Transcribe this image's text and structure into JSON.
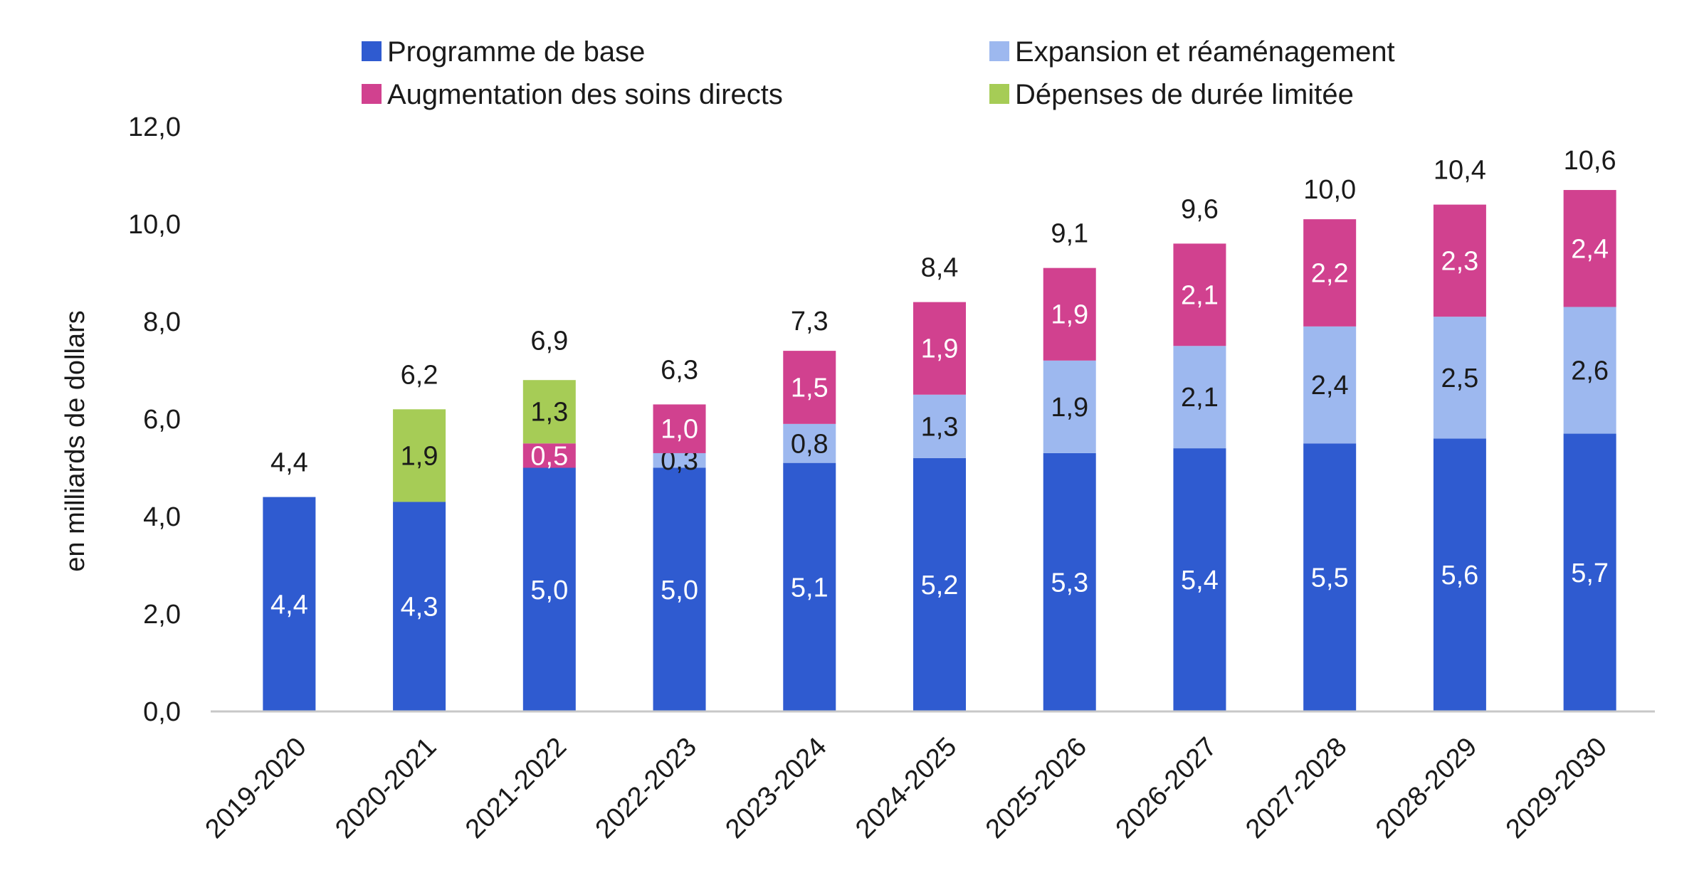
{
  "chart_data": {
    "type": "bar",
    "stacked": true,
    "categories": [
      "2019-2020",
      "2020-2021",
      "2021-2022",
      "2022-2023",
      "2023-2024",
      "2024-2025",
      "2025-2026",
      "2026-2027",
      "2027-2028",
      "2028-2029",
      "2029-2030"
    ],
    "series": [
      {
        "name": "Programme de base",
        "color": "#2f5bd0",
        "label_color": "#ffffff",
        "values": [
          4.4,
          4.3,
          5.0,
          5.0,
          5.1,
          5.2,
          5.3,
          5.4,
          5.5,
          5.6,
          5.7
        ],
        "labels": [
          "4,4",
          "4,3",
          "5,0",
          "5,0",
          "5,1",
          "5,2",
          "5,3",
          "5,4",
          "5,5",
          "5,6",
          "5,7"
        ]
      },
      {
        "name": "Expansion et réaménagement",
        "color": "#9db8ef",
        "label_color": "#1a1a1a",
        "values": [
          0,
          0,
          0,
          0.3,
          0.8,
          1.3,
          1.9,
          2.1,
          2.4,
          2.5,
          2.6
        ],
        "labels": [
          "",
          "",
          "",
          "0,3",
          "0,8",
          "1,3",
          "1,9",
          "2,1",
          "2,4",
          "2,5",
          "2,6"
        ]
      },
      {
        "name": "Augmentation des soins directs",
        "color": "#d1418f",
        "label_color": "#ffffff",
        "values": [
          0,
          0,
          0.5,
          1.0,
          1.5,
          1.9,
          1.9,
          2.1,
          2.2,
          2.3,
          2.4
        ],
        "labels": [
          "",
          "",
          "0,5",
          "1,0",
          "1,5",
          "1,9",
          "1,9",
          "2,1",
          "2,2",
          "2,3",
          "2,4"
        ]
      },
      {
        "name": "Dépenses de durée limitée",
        "color": "#a6cc56",
        "label_color": "#1a1a1a",
        "values": [
          0,
          1.9,
          1.3,
          0,
          0,
          0,
          0,
          0,
          0,
          0,
          0
        ],
        "labels": [
          "",
          "1,9",
          "1,3",
          "",
          "",
          "",
          "",
          "",
          "",
          "",
          ""
        ]
      }
    ],
    "totals": [
      4.4,
      6.2,
      6.9,
      6.3,
      7.3,
      8.4,
      9.1,
      9.6,
      10.0,
      10.4,
      10.6
    ],
    "total_labels": [
      "4,4",
      "6,2",
      "6,9",
      "6,3",
      "7,3",
      "8,4",
      "9,1",
      "9,6",
      "10,0",
      "10,4",
      "10,6"
    ],
    "ylabel": "en milliards de dollars",
    "xlabel": "",
    "ylim": [
      0,
      12
    ],
    "yticks": [
      0,
      2,
      4,
      6,
      8,
      10,
      12
    ],
    "ytick_labels": [
      "0,0",
      "2,0",
      "4,0",
      "6,0",
      "8,0",
      "10,0",
      "12,0"
    ],
    "grid": false,
    "legend_position": "top"
  }
}
